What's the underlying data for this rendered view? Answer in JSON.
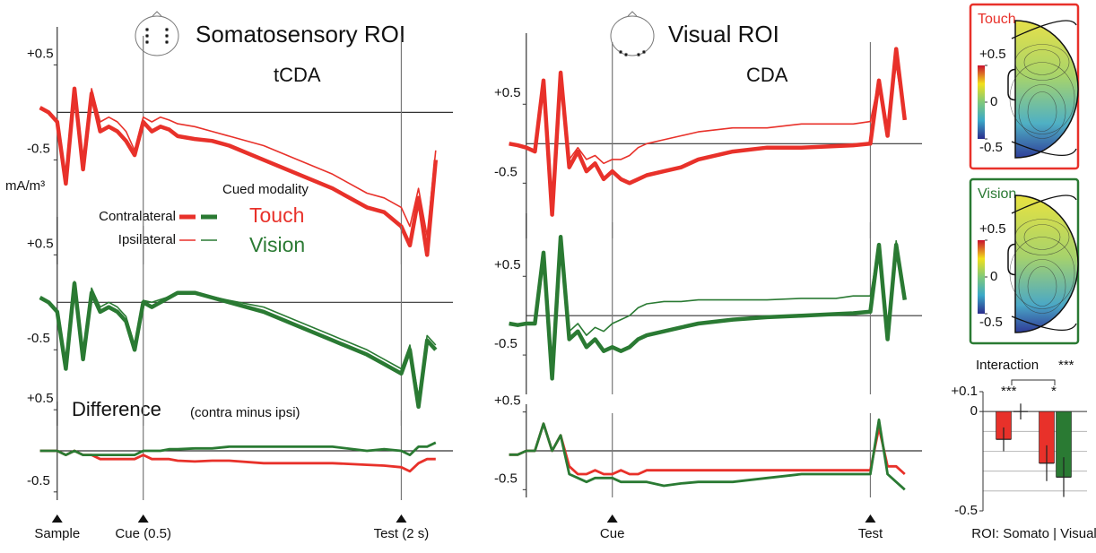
{
  "headers": [
    {
      "title": "Somatosensory ROI",
      "label": "tCDA"
    },
    {
      "title": "Visual ROI",
      "label": "CDA"
    }
  ],
  "unit": "mA/m³",
  "legend_title": "Cued modality",
  "difference": {
    "title": "Difference",
    "subtitle": "(contra minus ipsi)"
  },
  "chart_data": [
    {
      "type": "line",
      "xlim": [
        -0.15,
        2.3
      ],
      "ylim": [
        -1.6,
        0.9
      ],
      "yticks": [
        {
          "value": 0.5,
          "label": "+0.5"
        },
        -0.5
      ],
      "vlines": [
        0.5,
        2
      ],
      "x": [
        -0.1,
        -0.05,
        0,
        0.05,
        0.1,
        0.15,
        0.2,
        0.25,
        0.3,
        0.35,
        0.4,
        0.45,
        0.5,
        0.55,
        0.6,
        0.65,
        0.7,
        0.8,
        0.9,
        1.0,
        1.2,
        1.4,
        1.6,
        1.8,
        1.9,
        2.0,
        2.05,
        2.1,
        2.15,
        2.2
      ],
      "series": [
        {
          "name": "Contralateral",
          "color": "#e8312a",
          "values": [
            0.05,
            0.0,
            -0.1,
            -0.75,
            0.25,
            -0.6,
            0.2,
            -0.2,
            -0.15,
            -0.2,
            -0.3,
            -0.45,
            -0.1,
            -0.2,
            -0.15,
            -0.18,
            -0.25,
            -0.28,
            -0.3,
            -0.35,
            -0.5,
            -0.65,
            -0.8,
            -1.0,
            -1.05,
            -1.2,
            -1.4,
            -0.9,
            -1.5,
            -0.5
          ]
        },
        {
          "name": "Ipsilateral",
          "color": "#e8312a",
          "values": [
            0.05,
            0.0,
            -0.1,
            -0.7,
            0.25,
            -0.55,
            0.25,
            -0.1,
            -0.05,
            -0.1,
            -0.2,
            -0.4,
            -0.05,
            -0.1,
            -0.05,
            -0.08,
            -0.12,
            -0.15,
            -0.2,
            -0.25,
            -0.35,
            -0.5,
            -0.65,
            -0.85,
            -0.9,
            -1.0,
            -1.2,
            -0.8,
            -1.3,
            -0.4
          ]
        }
      ]
    },
    {
      "type": "line",
      "xlim": [
        -0.15,
        2.3
      ],
      "ylim": [
        -1.3,
        0.9
      ],
      "yticks": [
        {
          "value": 0.5,
          "label": "+0.5"
        },
        -0.5
      ],
      "vlines": [
        0.5,
        2
      ],
      "x": [
        -0.1,
        -0.05,
        0,
        0.05,
        0.1,
        0.15,
        0.2,
        0.25,
        0.3,
        0.35,
        0.4,
        0.45,
        0.5,
        0.55,
        0.6,
        0.65,
        0.7,
        0.8,
        0.9,
        1.0,
        1.2,
        1.4,
        1.6,
        1.8,
        1.9,
        2.0,
        2.05,
        2.1,
        2.15,
        2.2
      ],
      "series": [
        {
          "color": "#2a7a33",
          "values": [
            0.05,
            0.0,
            -0.1,
            -0.7,
            0.2,
            -0.6,
            0.1,
            -0.1,
            -0.05,
            -0.1,
            -0.2,
            -0.5,
            0.0,
            -0.05,
            0.0,
            0.05,
            0.1,
            0.1,
            0.05,
            0.0,
            -0.1,
            -0.25,
            -0.4,
            -0.55,
            -0.65,
            -0.75,
            -0.5,
            -1.1,
            -0.4,
            -0.5
          ]
        },
        {
          "color": "#2a7a33",
          "values": [
            0.05,
            0.0,
            -0.1,
            -0.65,
            0.22,
            -0.55,
            0.15,
            -0.05,
            0.0,
            -0.05,
            -0.15,
            -0.45,
            0.02,
            0.0,
            0.03,
            0.06,
            0.1,
            0.1,
            0.06,
            0.02,
            -0.05,
            -0.2,
            -0.35,
            -0.5,
            -0.6,
            -0.7,
            -0.45,
            -1.0,
            -0.35,
            -0.45
          ]
        }
      ]
    },
    {
      "type": "line",
      "xlim": [
        -0.15,
        2.3
      ],
      "ylim": [
        -0.6,
        0.6
      ],
      "yticks": [
        {
          "value": 0.5,
          "label": "+0.5"
        },
        -0.5
      ],
      "vlines": [
        0.5,
        2
      ],
      "events": [
        {
          "label": "Sample",
          "value": 0
        },
        {
          "label": "Cue (0.5)",
          "value": 0.5
        },
        {
          "label": "Test (2 s)",
          "value": 2
        }
      ],
      "x": [
        -0.1,
        -0.05,
        0,
        0.05,
        0.1,
        0.15,
        0.2,
        0.25,
        0.3,
        0.35,
        0.4,
        0.45,
        0.5,
        0.55,
        0.6,
        0.65,
        0.7,
        0.8,
        0.9,
        1.0,
        1.2,
        1.4,
        1.6,
        1.8,
        1.9,
        2.0,
        2.05,
        2.1,
        2.15,
        2.2
      ],
      "series": [
        {
          "name": "Touch",
          "color": "#e8312a",
          "values": [
            0,
            0,
            0,
            -0.05,
            0,
            -0.05,
            -0.05,
            -0.1,
            -0.1,
            -0.1,
            -0.1,
            -0.1,
            -0.05,
            -0.1,
            -0.1,
            -0.1,
            -0.12,
            -0.13,
            -0.12,
            -0.12,
            -0.15,
            -0.15,
            -0.15,
            -0.17,
            -0.18,
            -0.2,
            -0.25,
            -0.15,
            -0.1,
            -0.1
          ]
        },
        {
          "name": "Vision",
          "color": "#2a7a33",
          "values": [
            0,
            0,
            0,
            -0.05,
            0,
            -0.05,
            -0.05,
            -0.05,
            -0.05,
            -0.05,
            -0.05,
            -0.05,
            0,
            0,
            0,
            0.02,
            0.02,
            0.03,
            0.03,
            0.05,
            0.05,
            0.05,
            0.05,
            0.0,
            0.02,
            0.0,
            -0.05,
            0.05,
            0.05,
            0.1
          ]
        }
      ]
    },
    {
      "type": "line",
      "xlim": [
        -0.15,
        2.3
      ],
      "ylim": [
        -1.2,
        1.4
      ],
      "yticks": [
        {
          "value": 0.5,
          "label": "+0.5"
        },
        -0.5
      ],
      "vlines": [
        0.5,
        2
      ],
      "x": [
        -0.1,
        -0.05,
        0,
        0.05,
        0.1,
        0.15,
        0.2,
        0.25,
        0.3,
        0.35,
        0.4,
        0.45,
        0.5,
        0.55,
        0.6,
        0.65,
        0.7,
        0.8,
        0.9,
        1.0,
        1.2,
        1.4,
        1.6,
        1.8,
        1.9,
        2.0,
        2.05,
        2.1,
        2.15,
        2.2
      ],
      "series": [
        {
          "color": "#e8312a",
          "values": [
            0,
            -0.02,
            -0.05,
            -0.1,
            0.8,
            -0.9,
            0.9,
            -0.3,
            -0.1,
            -0.35,
            -0.25,
            -0.45,
            -0.35,
            -0.45,
            -0.5,
            -0.45,
            -0.4,
            -0.35,
            -0.3,
            -0.2,
            -0.1,
            -0.05,
            -0.05,
            -0.03,
            -0.02,
            0.0,
            0.8,
            0.1,
            1.2,
            0.3
          ]
        },
        {
          "color": "#e8312a",
          "values": [
            0,
            -0.02,
            -0.05,
            -0.1,
            0.8,
            -0.85,
            0.9,
            -0.2,
            -0.05,
            -0.2,
            -0.15,
            -0.25,
            -0.2,
            -0.2,
            -0.15,
            -0.05,
            0.0,
            0.05,
            0.1,
            0.15,
            0.2,
            0.2,
            0.25,
            0.25,
            0.25,
            0.28,
            0.8,
            0.2,
            1.0,
            0.3
          ]
        }
      ]
    },
    {
      "type": "line",
      "xlim": [
        -0.15,
        2.3
      ],
      "ylim": [
        -1.0,
        1.3
      ],
      "yticks": [
        {
          "value": 0.5,
          "label": "+0.5"
        },
        -0.5
      ],
      "vlines": [
        0.5,
        2
      ],
      "x": [
        -0.1,
        -0.05,
        0,
        0.05,
        0.1,
        0.15,
        0.2,
        0.25,
        0.3,
        0.35,
        0.4,
        0.45,
        0.5,
        0.55,
        0.6,
        0.65,
        0.7,
        0.8,
        0.9,
        1.0,
        1.2,
        1.4,
        1.6,
        1.8,
        1.9,
        2.0,
        2.05,
        2.1,
        2.15,
        2.2
      ],
      "series": [
        {
          "color": "#2a7a33",
          "values": [
            -0.1,
            -0.12,
            -0.1,
            -0.1,
            0.8,
            -0.8,
            1.0,
            -0.3,
            -0.2,
            -0.4,
            -0.3,
            -0.45,
            -0.4,
            -0.45,
            -0.4,
            -0.3,
            -0.25,
            -0.2,
            -0.15,
            -0.1,
            -0.05,
            -0.02,
            0.0,
            0.02,
            0.03,
            0.05,
            0.9,
            -0.3,
            0.9,
            0.2
          ]
        },
        {
          "color": "#2a7a33",
          "values": [
            -0.1,
            -0.12,
            -0.1,
            -0.1,
            0.8,
            -0.75,
            1.0,
            -0.2,
            -0.1,
            -0.25,
            -0.15,
            -0.2,
            -0.1,
            -0.05,
            0.0,
            0.1,
            0.15,
            0.18,
            0.18,
            0.2,
            0.2,
            0.2,
            0.22,
            0.22,
            0.25,
            0.25,
            0.9,
            -0.2,
            0.95,
            0.25
          ]
        }
      ]
    },
    {
      "type": "line",
      "xlim": [
        -0.15,
        2.3
      ],
      "ylim": [
        -0.6,
        0.6
      ],
      "yticks": [
        {
          "value": 0.5,
          "label": "+0.5"
        },
        -0.5
      ],
      "vlines": [
        0.5,
        2
      ],
      "events": [
        {
          "label": "Cue",
          "value": 0.5
        },
        {
          "label": "Test",
          "value": 2
        }
      ],
      "x": [
        -0.1,
        -0.05,
        0,
        0.05,
        0.1,
        0.15,
        0.2,
        0.25,
        0.3,
        0.35,
        0.4,
        0.45,
        0.5,
        0.55,
        0.6,
        0.65,
        0.7,
        0.8,
        0.9,
        1.0,
        1.2,
        1.4,
        1.6,
        1.8,
        1.9,
        2.0,
        2.05,
        2.1,
        2.15,
        2.2
      ],
      "series": [
        {
          "color": "#e8312a",
          "values": [
            -0.05,
            -0.05,
            0,
            0,
            0.35,
            0,
            0.2,
            -0.2,
            -0.3,
            -0.3,
            -0.25,
            -0.3,
            -0.3,
            -0.25,
            -0.3,
            -0.3,
            -0.25,
            -0.25,
            -0.25,
            -0.25,
            -0.25,
            -0.25,
            -0.25,
            -0.25,
            -0.25,
            -0.25,
            0.3,
            -0.2,
            -0.2,
            -0.3
          ]
        },
        {
          "color": "#2a7a33",
          "values": [
            -0.05,
            -0.05,
            0,
            0,
            0.35,
            0,
            0.2,
            -0.3,
            -0.35,
            -0.4,
            -0.35,
            -0.35,
            -0.35,
            -0.4,
            -0.4,
            -0.4,
            -0.4,
            -0.45,
            -0.42,
            -0.4,
            -0.4,
            -0.35,
            -0.3,
            -0.3,
            -0.3,
            -0.3,
            0.4,
            -0.3,
            -0.4,
            -0.5
          ]
        }
      ]
    },
    {
      "type": "topomap",
      "title": "Touch",
      "color": "#e8312a",
      "clim": [
        -0.5,
        0.5
      ],
      "cticks": [
        {
          "value": 0.5,
          "label": "+0.5"
        },
        0,
        -0.5
      ]
    },
    {
      "type": "topomap",
      "title": "Vision",
      "color": "#2a7a33",
      "clim": [
        -0.5,
        0.5
      ],
      "cticks": [
        {
          "value": 0.5,
          "label": "+0.5"
        },
        0,
        -0.5
      ]
    },
    {
      "type": "bar",
      "xlabel": "ROI: Somato | Visual",
      "ylim": [
        -0.5,
        0.1
      ],
      "yticks": [
        {
          "value": 0.1,
          "label": "+0.1"
        },
        0,
        -0.5
      ],
      "grid_lines": [
        -0.1,
        -0.2,
        -0.3,
        -0.4
      ],
      "series": [
        {
          "color": "#e8312a",
          "values": [
            -0.14,
            -0.26
          ],
          "errors": [
            0.06,
            0.09
          ]
        },
        {
          "color": "#2a7a33",
          "values": [
            0.0,
            -0.33
          ],
          "errors": [
            0.04,
            0.1
          ]
        }
      ],
      "annotations": [
        {
          "text": "Interaction"
        },
        {
          "text": "***"
        },
        {
          "text": "***"
        },
        {
          "text": "*"
        }
      ]
    }
  ]
}
